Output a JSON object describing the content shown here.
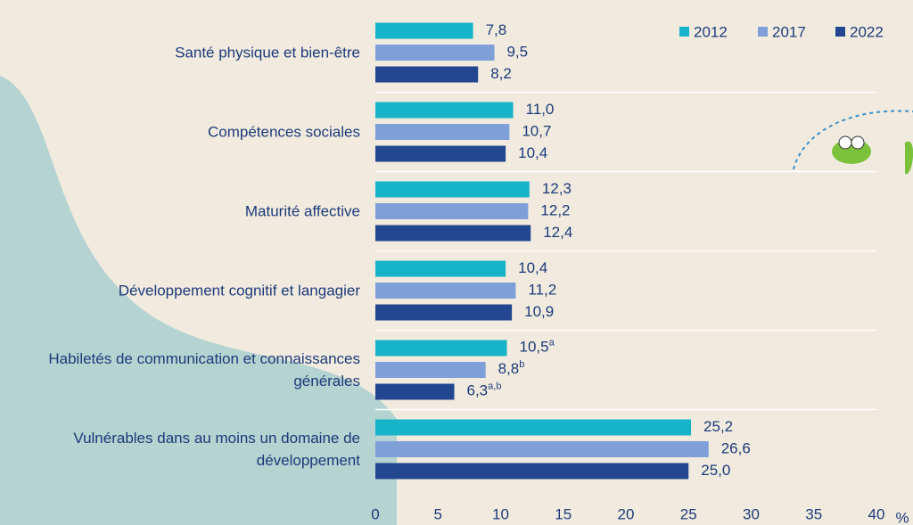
{
  "chart_data": {
    "type": "hbar",
    "categories": [
      "Santé physique et bien-être",
      "Compétences sociales",
      "Maturité affective",
      "Développement cognitif et langagier",
      "Habiletés de communication et connaissances générales",
      "Vulnérables dans au moins un domaine de développement"
    ],
    "series": [
      {
        "name": "2012",
        "color": "#17b3c8",
        "values": [
          7.8,
          11.0,
          12.3,
          10.4,
          10.5,
          25.2
        ],
        "value_labels": [
          "7,8",
          "11,0",
          "12,3",
          "10,4",
          {
            "text": "10,5",
            "sup": "a"
          },
          "25,2"
        ]
      },
      {
        "name": "2017",
        "color": "#7f9fd8",
        "values": [
          9.5,
          10.7,
          12.2,
          11.2,
          8.8,
          26.6
        ],
        "value_labels": [
          "9,5",
          "10,7",
          "12,2",
          "11,2",
          {
            "text": "8,8",
            "sup": "b"
          },
          "26,6"
        ]
      },
      {
        "name": "2022",
        "color": "#22468f",
        "values": [
          8.2,
          10.4,
          12.4,
          10.9,
          6.3,
          25.0
        ],
        "value_labels": [
          "8,2",
          "10,4",
          "12,4",
          "10,9",
          {
            "text": "6,3",
            "sup": "a,b"
          },
          "25,0"
        ]
      }
    ],
    "xlim": [
      0,
      40
    ],
    "xticks": [
      0,
      5,
      10,
      15,
      20,
      25,
      30,
      35,
      40
    ],
    "x_unit": "%",
    "legend": "top-right"
  }
}
